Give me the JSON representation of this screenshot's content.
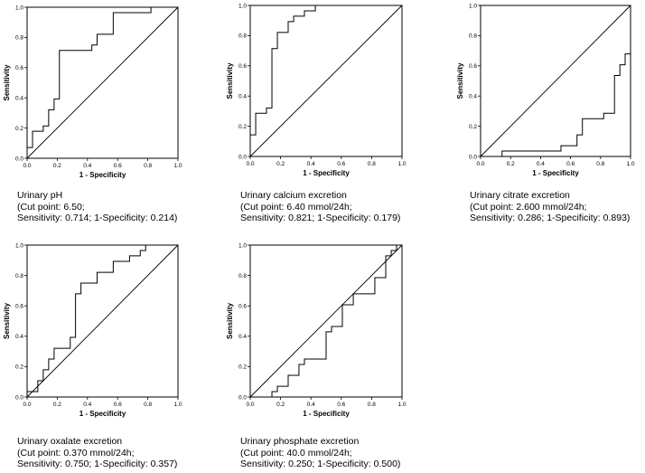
{
  "chart_data": [
    {
      "type": "line",
      "title": "Urinary pH",
      "xlabel": "1 - Specificity",
      "ylabel": "Sensitivity",
      "xlim": [
        0,
        1
      ],
      "ylim": [
        0,
        1
      ],
      "ticks": [
        "0.0",
        "0.2",
        "0.4",
        "0.6",
        "0.8",
        "1.0"
      ],
      "x": [
        0,
        0,
        0.036,
        0.036,
        0.107,
        0.107,
        0.143,
        0.143,
        0.179,
        0.179,
        0.214,
        0.214,
        0.429,
        0.429,
        0.464,
        0.464,
        0.571,
        0.571,
        0.821,
        0.821,
        1.0
      ],
      "y": [
        0,
        0.071,
        0.071,
        0.179,
        0.179,
        0.214,
        0.214,
        0.321,
        0.321,
        0.393,
        0.393,
        0.714,
        0.714,
        0.75,
        0.75,
        0.821,
        0.821,
        0.964,
        0.964,
        1.0,
        1.0
      ],
      "caption": [
        "Urinary pH",
        "(Cut point: 6.50;",
        "Sensitivity: 0.714; 1-Specificity: 0.214)"
      ]
    },
    {
      "type": "line",
      "title": "Urinary calcium excretion",
      "xlabel": "1 - Specificity",
      "ylabel": "Sensitivity",
      "xlim": [
        0,
        1
      ],
      "ylim": [
        0,
        1
      ],
      "ticks": [
        "0.0",
        "0.2",
        "0.4",
        "0.6",
        "0.8",
        "1.0"
      ],
      "x": [
        0,
        0,
        0.036,
        0.036,
        0.107,
        0.107,
        0.143,
        0.143,
        0.179,
        0.179,
        0.25,
        0.25,
        0.286,
        0.286,
        0.357,
        0.357,
        0.429,
        0.429,
        1.0
      ],
      "y": [
        0,
        0.143,
        0.143,
        0.286,
        0.286,
        0.321,
        0.321,
        0.714,
        0.714,
        0.821,
        0.821,
        0.893,
        0.893,
        0.929,
        0.929,
        0.964,
        0.964,
        1.0,
        1.0
      ],
      "caption": [
        "Urinary calcium excretion",
        "(Cut point: 6.40 mmol/24h;",
        "Sensitivity: 0.821; 1-Specificity: 0.179)"
      ]
    },
    {
      "type": "line",
      "title": "Urinary citrate excretion",
      "xlabel": "1 - Specificity",
      "ylabel": "Sensitivity",
      "xlim": [
        0,
        1
      ],
      "ylim": [
        0,
        1
      ],
      "ticks": [
        "0.0",
        "0.2",
        "0.4",
        "0.6",
        "0.8",
        "1.0"
      ],
      "x": [
        0,
        0.143,
        0.143,
        0.536,
        0.536,
        0.643,
        0.643,
        0.679,
        0.679,
        0.821,
        0.821,
        0.893,
        0.893,
        0.929,
        0.929,
        0.964,
        0.964,
        1.0,
        1.0
      ],
      "y": [
        0,
        0,
        0.036,
        0.036,
        0.071,
        0.071,
        0.143,
        0.143,
        0.25,
        0.25,
        0.286,
        0.286,
        0.536,
        0.536,
        0.607,
        0.607,
        0.679,
        0.679,
        1.0
      ],
      "caption": [
        "Urinary citrate excretion",
        "(Cut point: 2.600 mmol/24h;",
        "Sensitivity: 0.286; 1-Specificity: 0.893)"
      ]
    },
    {
      "type": "line",
      "title": "Urinary oxalate excretion",
      "xlabel": "1 - Specificity",
      "ylabel": "Sensitivity",
      "xlim": [
        0,
        1
      ],
      "ylim": [
        0,
        1
      ],
      "ticks": [
        "0.0",
        "0.2",
        "0.4",
        "0.6",
        "0.8",
        "1.0"
      ],
      "x": [
        0,
        0,
        0.071,
        0.071,
        0.107,
        0.107,
        0.143,
        0.143,
        0.179,
        0.179,
        0.286,
        0.286,
        0.321,
        0.321,
        0.357,
        0.357,
        0.464,
        0.464,
        0.571,
        0.571,
        0.679,
        0.679,
        0.75,
        0.75,
        0.786,
        0.786,
        1.0
      ],
      "y": [
        0,
        0.036,
        0.036,
        0.107,
        0.107,
        0.179,
        0.179,
        0.25,
        0.25,
        0.321,
        0.321,
        0.393,
        0.393,
        0.679,
        0.679,
        0.75,
        0.75,
        0.821,
        0.821,
        0.893,
        0.893,
        0.929,
        0.929,
        0.964,
        0.964,
        1.0,
        1.0
      ],
      "caption": [
        "Urinary oxalate excretion",
        "(Cut point: 0.370 mmol/24h;",
        "Sensitivity: 0.750; 1-Specificity: 0.357)"
      ]
    },
    {
      "type": "line",
      "title": "Urinary phosphate excretion",
      "xlabel": "1 - Specificity",
      "ylabel": "Sensitivity",
      "xlim": [
        0,
        1
      ],
      "ylim": [
        0,
        1
      ],
      "ticks": [
        "0.0",
        "0.2",
        "0.4",
        "0.6",
        "0.8",
        "1.0"
      ],
      "x": [
        0,
        0.143,
        0.143,
        0.179,
        0.179,
        0.25,
        0.25,
        0.321,
        0.321,
        0.357,
        0.357,
        0.5,
        0.5,
        0.536,
        0.536,
        0.607,
        0.607,
        0.679,
        0.679,
        0.821,
        0.821,
        0.893,
        0.893,
        0.929,
        0.929,
        0.964,
        0.964,
        1.0
      ],
      "y": [
        0,
        0,
        0.036,
        0.036,
        0.071,
        0.071,
        0.143,
        0.143,
        0.214,
        0.214,
        0.25,
        0.25,
        0.429,
        0.429,
        0.464,
        0.464,
        0.607,
        0.607,
        0.679,
        0.679,
        0.786,
        0.786,
        0.929,
        0.929,
        0.964,
        0.964,
        1.0,
        1.0
      ],
      "caption": [
        "Urinary phosphate excretion",
        "(Cut point: 40.0 mmol/24h;",
        "Sensitivity: 0.250; 1-Specificity: 0.500)"
      ]
    }
  ]
}
